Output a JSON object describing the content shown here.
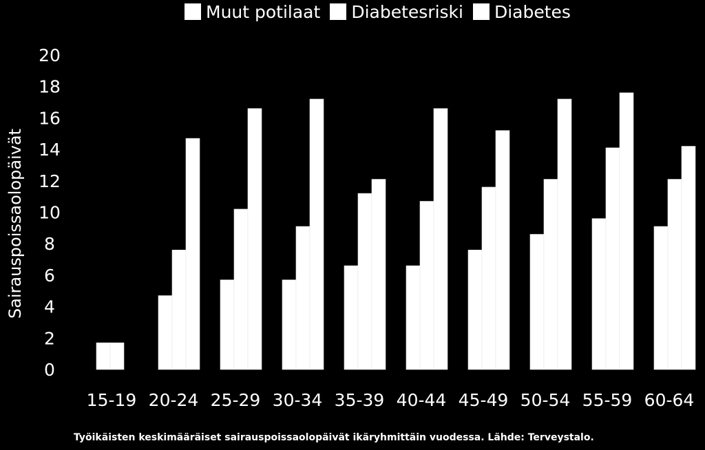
{
  "chart_data": {
    "type": "bar",
    "ylabel": "Sairauspoissaolopäivät",
    "xlabel": "",
    "categories": [
      "15-19",
      "20-24",
      "25-29",
      "30-34",
      "35-39",
      "40-44",
      "45-49",
      "50-54",
      "55-59",
      "60-64"
    ],
    "series": [
      {
        "name": "Muut potilaat",
        "values": [
          1.7,
          4.7,
          5.7,
          5.7,
          6.6,
          6.6,
          7.6,
          8.6,
          9.6,
          9.1
        ]
      },
      {
        "name": "Diabetesriski",
        "values": [
          1.7,
          7.6,
          10.2,
          9.1,
          11.2,
          10.7,
          11.6,
          12.1,
          14.1,
          12.1
        ]
      },
      {
        "name": "Diabetes",
        "values": [
          null,
          14.7,
          16.6,
          17.2,
          12.1,
          16.6,
          15.2,
          17.2,
          17.6,
          14.2
        ]
      }
    ],
    "ylim": [
      0,
      20
    ],
    "yticks": [
      0,
      2,
      4,
      6,
      8,
      10,
      12,
      14,
      16,
      18,
      20
    ],
    "legend_position": "top",
    "grid": false,
    "colors": {
      "background": "#000000",
      "bars": "#ffffff",
      "text": "#ffffff"
    }
  },
  "caption": "Työikäisten keskimääräiset sairauspoissaolopäivät ikäryhmittäin vuodessa. Lähde: Terveystalo."
}
